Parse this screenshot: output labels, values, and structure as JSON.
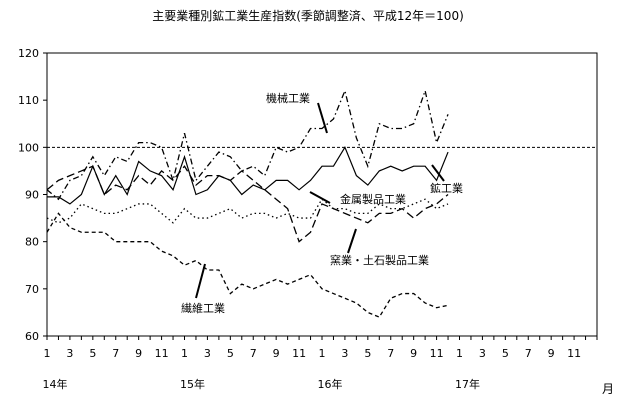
{
  "chart_data": {
    "type": "line",
    "title": "主要業種別鉱工業生産指数(季節調整済、平成12年＝100)",
    "xlabel": "月",
    "ylabel": "",
    "ylim": [
      60,
      120
    ],
    "yticks": [
      60,
      70,
      80,
      90,
      100,
      110,
      120
    ],
    "x_ticks": [
      "1",
      "3",
      "5",
      "7",
      "9",
      "11",
      "1",
      "3",
      "5",
      "7",
      "9",
      "11",
      "1",
      "3",
      "5",
      "7",
      "9",
      "11",
      "1",
      "3",
      "5",
      "7",
      "9",
      "11"
    ],
    "year_labels": [
      "14年",
      "15年",
      "16年",
      "17年"
    ],
    "reference_line": 100,
    "grid": false,
    "series": [
      {
        "name": "鉱工業",
        "style": "solid",
        "values": [
          89.5,
          89.5,
          88,
          90,
          96,
          90,
          94,
          90,
          97,
          95,
          94,
          91,
          98,
          90,
          91,
          94,
          93,
          90,
          92,
          91,
          93,
          93,
          91,
          93,
          96,
          96,
          100,
          94,
          92,
          95,
          96,
          95,
          96,
          96,
          93,
          99
        ]
      },
      {
        "name": "機械工業",
        "style": "dashdot",
        "values": [
          91,
          89,
          93,
          94,
          98,
          94,
          98,
          97,
          101,
          101,
          100,
          93,
          103,
          93,
          96,
          99,
          98,
          95,
          96,
          94,
          100,
          99,
          100,
          104,
          104,
          106,
          112,
          102,
          96,
          105,
          104,
          104,
          105,
          112,
          101,
          107
        ]
      },
      {
        "name": "金属製品工業",
        "style": "dotted",
        "values": [
          85,
          84,
          85,
          88,
          87,
          86,
          86,
          87,
          88,
          88,
          86,
          84,
          87,
          85,
          85,
          86,
          87,
          85,
          86,
          86,
          85,
          86,
          85,
          85,
          89,
          87,
          87,
          86,
          86,
          88,
          87,
          87,
          88,
          89,
          87,
          88
        ]
      },
      {
        "name": "窯業・土石製品工業",
        "style": "longdash",
        "values": [
          91,
          93,
          94,
          95,
          96,
          90,
          92,
          91,
          94,
          92,
          95,
          93,
          96,
          92,
          94,
          94,
          93,
          95,
          93,
          91,
          89,
          87,
          80,
          82,
          88,
          87,
          86,
          85,
          84,
          86,
          86,
          87,
          85,
          87,
          88,
          90
        ]
      },
      {
        "name": "繊維工業",
        "style": "shortdash",
        "values": [
          82,
          86,
          83,
          82,
          82,
          82,
          80,
          80,
          80,
          80,
          78,
          77,
          75,
          76,
          74,
          74,
          69,
          71,
          70,
          71,
          72,
          71,
          72,
          73,
          70,
          69,
          68,
          67,
          65,
          64,
          68,
          69,
          69,
          67,
          66,
          66.5
        ]
      }
    ],
    "annotations": [
      "機械工業",
      "鉱工業",
      "金属製品工業",
      "窯業・土石製品工業",
      "繊維工業"
    ]
  }
}
